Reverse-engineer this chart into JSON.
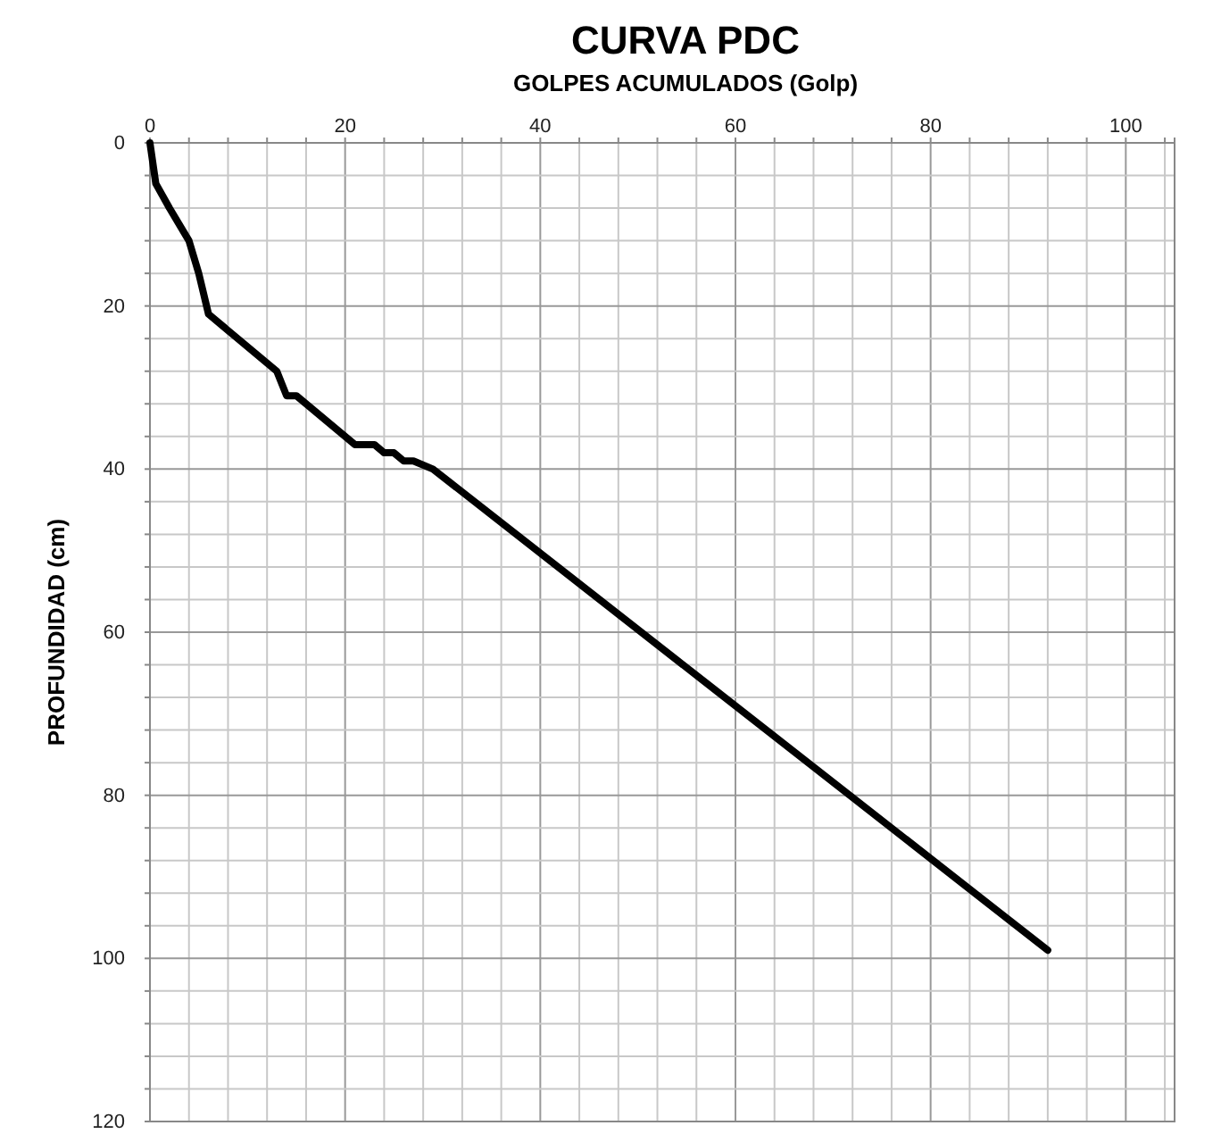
{
  "chart_data": {
    "type": "line",
    "title": "CURVA PDC",
    "xlabel": "GOLPES ACUMULADOS (Golp)",
    "ylabel": "PROFUNDIDAD (cm)",
    "x": [
      0,
      0.6,
      2,
      4,
      5,
      6,
      13,
      14,
      15,
      21,
      23,
      24,
      25,
      26,
      27,
      29,
      92
    ],
    "series": [
      {
        "color": "#000000",
        "values": [
          0,
          5,
          8,
          12,
          16,
          21,
          28,
          31,
          31,
          37,
          37,
          38,
          38,
          39,
          39,
          40,
          99
        ]
      }
    ],
    "xlim": [
      0,
      105
    ],
    "ylim": [
      120,
      0
    ],
    "xticks": [
      0,
      {
        "value": 4,
        "label": null
      },
      {
        "value": 8,
        "label": null
      },
      {
        "value": 12,
        "label": null
      },
      {
        "value": 16,
        "label": null
      },
      20,
      {
        "value": 24,
        "label": null
      },
      {
        "value": 28,
        "label": null
      },
      {
        "value": 32,
        "label": null
      },
      {
        "value": 36,
        "label": null
      },
      40,
      {
        "value": 44,
        "label": null
      },
      {
        "value": 48,
        "label": null
      },
      {
        "value": 52,
        "label": null
      },
      {
        "value": 56,
        "label": null
      },
      60,
      {
        "value": 64,
        "label": null
      },
      {
        "value": 68,
        "label": null
      },
      {
        "value": 72,
        "label": null
      },
      {
        "value": 76,
        "label": null
      },
      80,
      {
        "value": 84,
        "label": null
      },
      {
        "value": 88,
        "label": null
      },
      {
        "value": 92,
        "label": null
      },
      {
        "value": 96,
        "label": null
      },
      100,
      {
        "value": 104,
        "label": null
      }
    ],
    "yticks": [
      0,
      {
        "value": 4,
        "label": null
      },
      {
        "value": 8,
        "label": null
      },
      {
        "value": 12,
        "label": null
      },
      {
        "value": 16,
        "label": null
      },
      20,
      {
        "value": 24,
        "label": null
      },
      {
        "value": 28,
        "label": null
      },
      {
        "value": 32,
        "label": null
      },
      {
        "value": 36,
        "label": null
      },
      40,
      {
        "value": 44,
        "label": null
      },
      {
        "value": 48,
        "label": null
      },
      {
        "value": 52,
        "label": null
      },
      {
        "value": 56,
        "label": null
      },
      60,
      {
        "value": 64,
        "label": null
      },
      {
        "value": 68,
        "label": null
      },
      {
        "value": 72,
        "label": null
      },
      {
        "value": 76,
        "label": null
      },
      80,
      {
        "value": 84,
        "label": null
      },
      {
        "value": 88,
        "label": null
      },
      {
        "value": 92,
        "label": null
      },
      {
        "value": 96,
        "label": null
      },
      100,
      {
        "value": 104,
        "label": null
      },
      {
        "value": 108,
        "label": null
      },
      {
        "value": 112,
        "label": null
      },
      {
        "value": 116,
        "label": null
      },
      120
    ],
    "grid": true,
    "line_style": "solid",
    "marker": "none"
  }
}
